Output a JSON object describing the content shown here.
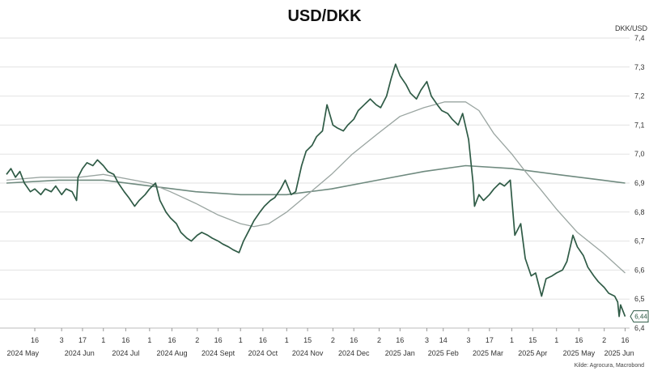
{
  "chart_data": {
    "type": "line",
    "title": "USD/DKK",
    "unit_label": "DKK/USD",
    "source": "Kilde: Agrocura, Macrobond",
    "ylim": [
      6.4,
      7.4
    ],
    "yticks": [
      "7,4",
      "7,3",
      "7,2",
      "7,1",
      "7,0",
      "6,9",
      "6,8",
      "6,7",
      "6,6",
      "6,5",
      "6,4"
    ],
    "xlim": [
      "2024-04-27",
      "2025-06-19"
    ],
    "x_ticks": [
      {
        "date": "2024-05-16",
        "label": "16"
      },
      {
        "date": "2024-06-03",
        "label": "3"
      },
      {
        "date": "2024-06-17",
        "label": "17"
      },
      {
        "date": "2024-07-01",
        "label": "1"
      },
      {
        "date": "2024-07-16",
        "label": "16"
      },
      {
        "date": "2024-08-01",
        "label": "1"
      },
      {
        "date": "2024-08-16",
        "label": "16"
      },
      {
        "date": "2024-09-02",
        "label": "2"
      },
      {
        "date": "2024-09-16",
        "label": "16"
      },
      {
        "date": "2024-10-01",
        "label": "1"
      },
      {
        "date": "2024-10-16",
        "label": "16"
      },
      {
        "date": "2024-11-01",
        "label": "1"
      },
      {
        "date": "2024-11-15",
        "label": "15"
      },
      {
        "date": "2024-12-02",
        "label": "2"
      },
      {
        "date": "2024-12-16",
        "label": "16"
      },
      {
        "date": "2025-01-02",
        "label": "2"
      },
      {
        "date": "2025-01-16",
        "label": "16"
      },
      {
        "date": "2025-02-03",
        "label": "3"
      },
      {
        "date": "2025-02-14",
        "label": "14"
      },
      {
        "date": "2025-03-03",
        "label": "3"
      },
      {
        "date": "2025-03-17",
        "label": "17"
      },
      {
        "date": "2025-04-01",
        "label": "1"
      },
      {
        "date": "2025-04-15",
        "label": "15"
      },
      {
        "date": "2025-05-01",
        "label": "1"
      },
      {
        "date": "2025-05-16",
        "label": "16"
      },
      {
        "date": "2025-06-02",
        "label": "2"
      },
      {
        "date": "2025-06-16",
        "label": "16"
      }
    ],
    "x_months": [
      {
        "date": "2024-05-08",
        "label": "2024 May"
      },
      {
        "date": "2024-06-15",
        "label": "2024 Jun"
      },
      {
        "date": "2024-07-16",
        "label": "2024 Jul"
      },
      {
        "date": "2024-08-16",
        "label": "2024 Aug"
      },
      {
        "date": "2024-09-16",
        "label": "2024 Sept"
      },
      {
        "date": "2024-10-16",
        "label": "2024 Oct"
      },
      {
        "date": "2024-11-15",
        "label": "2024 Nov"
      },
      {
        "date": "2024-12-16",
        "label": "2024 Dec"
      },
      {
        "date": "2025-01-16",
        "label": "2025 Jan"
      },
      {
        "date": "2025-02-14",
        "label": "2025 Feb"
      },
      {
        "date": "2025-03-16",
        "label": "2025 Mar"
      },
      {
        "date": "2025-04-15",
        "label": "2025 Apr"
      },
      {
        "date": "2025-05-16",
        "label": "2025 May"
      },
      {
        "date": "2025-06-12",
        "label": "2025 Jun"
      }
    ],
    "last_value_label": "6,44",
    "colors": {
      "spot": "#2f5b46",
      "ma_short": "#9aa5a1",
      "ma_long": "#6f8a7f"
    },
    "series": [
      {
        "key": "spot",
        "points": [
          [
            "2024-04-27",
            6.93
          ],
          [
            "2024-04-30",
            6.95
          ],
          [
            "2024-05-03",
            6.92
          ],
          [
            "2024-05-06",
            6.94
          ],
          [
            "2024-05-09",
            6.9
          ],
          [
            "2024-05-13",
            6.87
          ],
          [
            "2024-05-16",
            6.88
          ],
          [
            "2024-05-20",
            6.86
          ],
          [
            "2024-05-23",
            6.88
          ],
          [
            "2024-05-27",
            6.87
          ],
          [
            "2024-05-30",
            6.89
          ],
          [
            "2024-06-03",
            6.86
          ],
          [
            "2024-06-06",
            6.88
          ],
          [
            "2024-06-10",
            6.87
          ],
          [
            "2024-06-13",
            6.84
          ],
          [
            "2024-06-14",
            6.92
          ],
          [
            "2024-06-17",
            6.95
          ],
          [
            "2024-06-20",
            6.97
          ],
          [
            "2024-06-24",
            6.96
          ],
          [
            "2024-06-27",
            6.98
          ],
          [
            "2024-07-01",
            6.96
          ],
          [
            "2024-07-04",
            6.94
          ],
          [
            "2024-07-08",
            6.93
          ],
          [
            "2024-07-11",
            6.9
          ],
          [
            "2024-07-15",
            6.87
          ],
          [
            "2024-07-18",
            6.85
          ],
          [
            "2024-07-22",
            6.82
          ],
          [
            "2024-07-25",
            6.84
          ],
          [
            "2024-07-29",
            6.86
          ],
          [
            "2024-08-01",
            6.88
          ],
          [
            "2024-08-05",
            6.9
          ],
          [
            "2024-08-08",
            6.84
          ],
          [
            "2024-08-12",
            6.8
          ],
          [
            "2024-08-15",
            6.78
          ],
          [
            "2024-08-19",
            6.76
          ],
          [
            "2024-08-22",
            6.73
          ],
          [
            "2024-08-26",
            6.71
          ],
          [
            "2024-08-29",
            6.7
          ],
          [
            "2024-09-02",
            6.72
          ],
          [
            "2024-09-05",
            6.73
          ],
          [
            "2024-09-09",
            6.72
          ],
          [
            "2024-09-12",
            6.71
          ],
          [
            "2024-09-16",
            6.7
          ],
          [
            "2024-09-19",
            6.69
          ],
          [
            "2024-09-23",
            6.68
          ],
          [
            "2024-09-26",
            6.67
          ],
          [
            "2024-09-30",
            6.66
          ],
          [
            "2024-10-03",
            6.7
          ],
          [
            "2024-10-07",
            6.74
          ],
          [
            "2024-10-10",
            6.77
          ],
          [
            "2024-10-14",
            6.8
          ],
          [
            "2024-10-17",
            6.82
          ],
          [
            "2024-10-21",
            6.84
          ],
          [
            "2024-10-24",
            6.85
          ],
          [
            "2024-10-28",
            6.88
          ],
          [
            "2024-10-31",
            6.91
          ],
          [
            "2024-11-04",
            6.86
          ],
          [
            "2024-11-07",
            6.87
          ],
          [
            "2024-11-11",
            6.96
          ],
          [
            "2024-11-14",
            7.01
          ],
          [
            "2024-11-18",
            7.03
          ],
          [
            "2024-11-21",
            7.06
          ],
          [
            "2024-11-25",
            7.08
          ],
          [
            "2024-11-28",
            7.17
          ],
          [
            "2024-12-02",
            7.1
          ],
          [
            "2024-12-05",
            7.09
          ],
          [
            "2024-12-09",
            7.08
          ],
          [
            "2024-12-12",
            7.1
          ],
          [
            "2024-12-16",
            7.12
          ],
          [
            "2024-12-19",
            7.15
          ],
          [
            "2024-12-23",
            7.17
          ],
          [
            "2024-12-27",
            7.19
          ],
          [
            "2024-12-31",
            7.17
          ],
          [
            "2025-01-03",
            7.16
          ],
          [
            "2025-01-07",
            7.2
          ],
          [
            "2025-01-10",
            7.26
          ],
          [
            "2025-01-13",
            7.31
          ],
          [
            "2025-01-16",
            7.27
          ],
          [
            "2025-01-20",
            7.24
          ],
          [
            "2025-01-23",
            7.21
          ],
          [
            "2025-01-27",
            7.19
          ],
          [
            "2025-01-30",
            7.22
          ],
          [
            "2025-02-03",
            7.25
          ],
          [
            "2025-02-06",
            7.2
          ],
          [
            "2025-02-10",
            7.17
          ],
          [
            "2025-02-13",
            7.15
          ],
          [
            "2025-02-17",
            7.14
          ],
          [
            "2025-02-20",
            7.12
          ],
          [
            "2025-02-24",
            7.1
          ],
          [
            "2025-02-27",
            7.14
          ],
          [
            "2025-03-03",
            7.05
          ],
          [
            "2025-03-06",
            6.9
          ],
          [
            "2025-03-07",
            6.82
          ],
          [
            "2025-03-10",
            6.86
          ],
          [
            "2025-03-13",
            6.84
          ],
          [
            "2025-03-17",
            6.86
          ],
          [
            "2025-03-20",
            6.88
          ],
          [
            "2025-03-24",
            6.9
          ],
          [
            "2025-03-27",
            6.89
          ],
          [
            "2025-03-31",
            6.91
          ],
          [
            "2025-04-03",
            6.72
          ],
          [
            "2025-04-07",
            6.76
          ],
          [
            "2025-04-10",
            6.64
          ],
          [
            "2025-04-14",
            6.58
          ],
          [
            "2025-04-17",
            6.59
          ],
          [
            "2025-04-21",
            6.51
          ],
          [
            "2025-04-24",
            6.57
          ],
          [
            "2025-04-28",
            6.58
          ],
          [
            "2025-05-01",
            6.59
          ],
          [
            "2025-05-05",
            6.6
          ],
          [
            "2025-05-08",
            6.63
          ],
          [
            "2025-05-12",
            6.72
          ],
          [
            "2025-05-15",
            6.68
          ],
          [
            "2025-05-19",
            6.65
          ],
          [
            "2025-05-22",
            6.61
          ],
          [
            "2025-05-26",
            6.58
          ],
          [
            "2025-05-29",
            6.56
          ],
          [
            "2025-06-02",
            6.54
          ],
          [
            "2025-06-05",
            6.52
          ],
          [
            "2025-06-09",
            6.51
          ],
          [
            "2025-06-11",
            6.49
          ],
          [
            "2025-06-12",
            6.44
          ],
          [
            "2025-06-13",
            6.48
          ],
          [
            "2025-06-16",
            6.44
          ]
        ]
      },
      {
        "key": "ma_short",
        "points": [
          [
            "2024-04-27",
            6.91
          ],
          [
            "2024-05-20",
            6.92
          ],
          [
            "2024-06-15",
            6.92
          ],
          [
            "2024-07-01",
            6.93
          ],
          [
            "2024-08-01",
            6.9
          ],
          [
            "2024-08-15",
            6.87
          ],
          [
            "2024-09-01",
            6.83
          ],
          [
            "2024-09-16",
            6.79
          ],
          [
            "2024-10-01",
            6.76
          ],
          [
            "2024-10-10",
            6.75
          ],
          [
            "2024-10-20",
            6.76
          ],
          [
            "2024-11-01",
            6.8
          ],
          [
            "2024-11-15",
            6.86
          ],
          [
            "2024-12-01",
            6.93
          ],
          [
            "2024-12-15",
            7.0
          ],
          [
            "2025-01-01",
            7.07
          ],
          [
            "2025-01-16",
            7.13
          ],
          [
            "2025-02-01",
            7.16
          ],
          [
            "2025-02-15",
            7.18
          ],
          [
            "2025-03-01",
            7.18
          ],
          [
            "2025-03-10",
            7.15
          ],
          [
            "2025-03-20",
            7.07
          ],
          [
            "2025-04-01",
            7.0
          ],
          [
            "2025-04-10",
            6.94
          ],
          [
            "2025-04-20",
            6.88
          ],
          [
            "2025-05-01",
            6.81
          ],
          [
            "2025-05-15",
            6.73
          ],
          [
            "2025-06-01",
            6.66
          ],
          [
            "2025-06-16",
            6.59
          ]
        ]
      },
      {
        "key": "ma_long",
        "points": [
          [
            "2024-04-27",
            6.9
          ],
          [
            "2024-06-01",
            6.91
          ],
          [
            "2024-07-01",
            6.91
          ],
          [
            "2024-08-01",
            6.89
          ],
          [
            "2024-09-01",
            6.87
          ],
          [
            "2024-10-01",
            6.86
          ],
          [
            "2024-11-01",
            6.86
          ],
          [
            "2024-12-01",
            6.88
          ],
          [
            "2025-01-01",
            6.91
          ],
          [
            "2025-02-01",
            6.94
          ],
          [
            "2025-03-01",
            6.96
          ],
          [
            "2025-04-01",
            6.95
          ],
          [
            "2025-05-01",
            6.93
          ],
          [
            "2025-06-01",
            6.91
          ],
          [
            "2025-06-16",
            6.9
          ]
        ]
      }
    ]
  }
}
